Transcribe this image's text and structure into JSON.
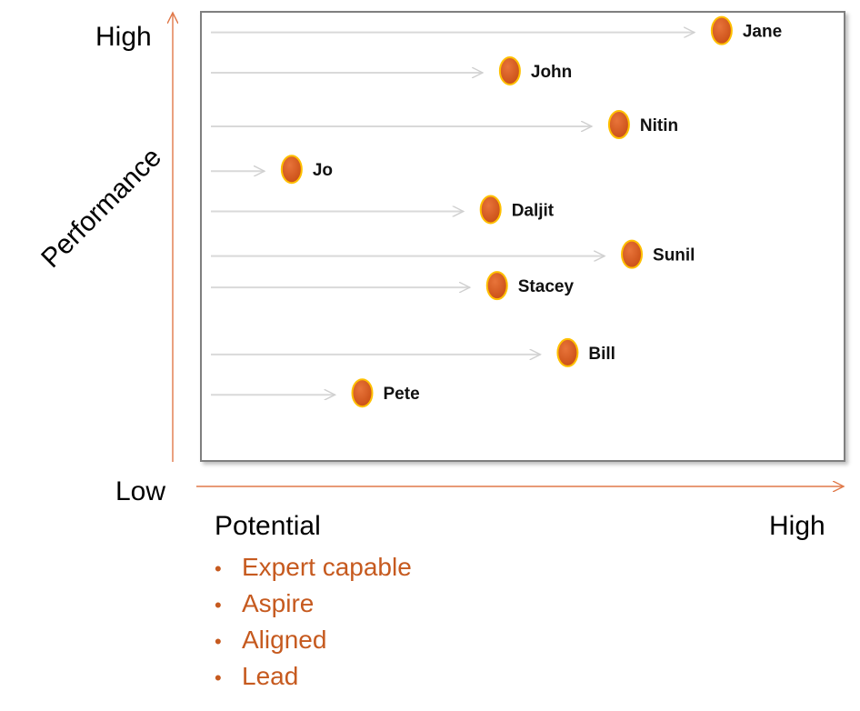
{
  "axes": {
    "y_high_label": "High",
    "y_title": "Performance",
    "x_low_label": "Low",
    "x_title": "Potential",
    "x_high_label": "High"
  },
  "legend_items": [
    "Expert capable",
    "Aspire",
    "Aligned",
    "Lead"
  ],
  "colors": {
    "axis_arrow": "#e0794a",
    "dot_fill": "#d9591c",
    "dot_stroke": "#ffc000",
    "legend_text": "#c65a1f",
    "track_arrow": "#d9d9d9"
  },
  "chart_data": {
    "type": "scatter",
    "points": [
      {
        "name": "Jane",
        "potential": 0.81,
        "performance": 0.96
      },
      {
        "name": "John",
        "potential": 0.48,
        "performance": 0.87
      },
      {
        "name": "Nitin",
        "potential": 0.65,
        "performance": 0.75
      },
      {
        "name": "Jo",
        "potential": 0.14,
        "performance": 0.65
      },
      {
        "name": "Daljit",
        "potential": 0.45,
        "performance": 0.56
      },
      {
        "name": "Sunil",
        "potential": 0.67,
        "performance": 0.46
      },
      {
        "name": "Stacey",
        "potential": 0.46,
        "performance": 0.39
      },
      {
        "name": "Bill",
        "potential": 0.57,
        "performance": 0.24
      },
      {
        "name": "Pete",
        "potential": 0.25,
        "performance": 0.15
      }
    ]
  }
}
